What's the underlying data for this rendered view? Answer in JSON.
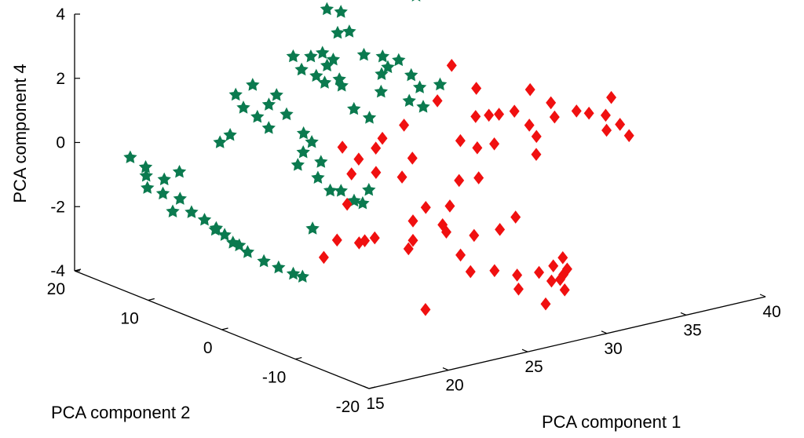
{
  "chart_data": {
    "type": "scatter",
    "projection": "3d",
    "grid": false,
    "colors": {
      "green": "#0b7a4f",
      "red": "#f01010"
    },
    "marker_shapes": {
      "green": "pentagram",
      "red": "diamond"
    },
    "axes": {
      "x": {
        "label": "PCA component 1",
        "lim": [
          15,
          40
        ],
        "ticks": [
          15,
          20,
          25,
          30,
          35,
          40
        ]
      },
      "y": {
        "label": "PCA component 2",
        "lim": [
          -20,
          20
        ],
        "ticks": [
          -20,
          -10,
          0,
          10,
          20
        ]
      },
      "z": {
        "label": "PCA component 4",
        "lim": [
          -4,
          4
        ],
        "ticks": [
          -4,
          -2,
          0,
          2,
          4
        ]
      }
    },
    "series": [
      {
        "color_key": "green",
        "points": [
          [
            15.6,
            11.4,
            -0.7
          ],
          [
            15.8,
            12.0,
            -0.4
          ],
          [
            16.3,
            10.8,
            -0.9
          ],
          [
            16.0,
            12.5,
            -0.2
          ],
          [
            16.8,
            11.7,
            -0.6
          ],
          [
            17.1,
            10.2,
            -1.1
          ],
          [
            16.5,
            9.9,
            -1.4
          ],
          [
            15.4,
            13.3,
            0.1
          ],
          [
            17.9,
            8.6,
            -1.7
          ],
          [
            17.5,
            9.5,
            -1.5
          ],
          [
            18.3,
            8.0,
            -2.0
          ],
          [
            19.0,
            7.1,
            -2.4
          ],
          [
            19.6,
            6.4,
            -2.7
          ],
          [
            20.3,
            5.7,
            -3.0
          ],
          [
            20.9,
            5.0,
            -3.2
          ],
          [
            21.5,
            4.3,
            -3.4
          ],
          [
            21.9,
            3.9,
            -3.5
          ],
          [
            18.8,
            7.8,
            -2.2
          ],
          [
            18.5,
            8.3,
            -2.0
          ],
          [
            19.3,
            6.9,
            -2.5
          ],
          [
            17.2,
            10.5,
            -0.3
          ],
          [
            19.2,
            9.3,
            0.5
          ],
          [
            19.7,
            9.0,
            0.7
          ],
          [
            22.3,
            3.4,
            -2.0
          ],
          [
            20.4,
            8.7,
            1.5
          ],
          [
            20.1,
            9.1,
            1.9
          ],
          [
            21.0,
            8.1,
            1.2
          ],
          [
            21.4,
            7.4,
            1.6
          ],
          [
            20.8,
            8.3,
            2.2
          ],
          [
            21.7,
            7.0,
            1.9
          ],
          [
            22.1,
            6.5,
            1.3
          ],
          [
            22.8,
            5.7,
            0.7
          ],
          [
            21.3,
            7.2,
            0.9
          ],
          [
            22.3,
            5.4,
            -0.2
          ],
          [
            23.1,
            4.4,
            -0.6
          ],
          [
            23.6,
            3.8,
            -1.0
          ],
          [
            23.2,
            4.2,
            -0.1
          ],
          [
            22.5,
            5.1,
            0.2
          ],
          [
            24.0,
            3.2,
            -1.0
          ],
          [
            22.9,
            4.8,
            0.5
          ],
          [
            24.5,
            2.5,
            -1.3
          ],
          [
            24.9,
            2.2,
            -1.4
          ],
          [
            25.2,
            2.0,
            -1.0
          ],
          [
            22.7,
            6.9,
            3.0
          ],
          [
            23.4,
            6.0,
            3.0
          ],
          [
            23.9,
            5.5,
            3.1
          ],
          [
            23.0,
            6.4,
            2.6
          ],
          [
            23.6,
            5.7,
            2.4
          ],
          [
            24.3,
            4.9,
            2.9
          ],
          [
            24.1,
            5.3,
            2.7
          ],
          [
            24.6,
            4.4,
            2.1
          ],
          [
            23.9,
            5.2,
            2.2
          ],
          [
            24.5,
            4.5,
            2.3
          ],
          [
            25.7,
            3.0,
            1.1
          ],
          [
            25.0,
            3.6,
            1.4
          ],
          [
            26.2,
            2.5,
            1.9
          ],
          [
            24.6,
            6.4,
            4.3
          ],
          [
            25.2,
            5.8,
            4.2
          ],
          [
            24.9,
            5.6,
            3.6
          ],
          [
            25.5,
            5.3,
            3.6
          ],
          [
            26.0,
            4.4,
            2.9
          ],
          [
            26.7,
            3.5,
            2.3
          ],
          [
            27.0,
            3.3,
            2.5
          ],
          [
            27.5,
            2.9,
            2.7
          ],
          [
            26.9,
            3.8,
            2.8
          ],
          [
            28.1,
            2.5,
            2.2
          ],
          [
            28.5,
            2.2,
            1.8
          ],
          [
            28.3,
            1.3,
            1.3
          ],
          [
            27.7,
            1.9,
            1.5
          ],
          [
            29.2,
            4.2,
            4.4
          ],
          [
            29.6,
            1.8,
            1.8
          ]
        ]
      },
      {
        "color_key": "red",
        "points": [
          [
            18.6,
            -6.1,
            -1.6
          ],
          [
            20.5,
            -6.8,
            -1.3
          ],
          [
            20.3,
            -8.0,
            -1.1
          ],
          [
            19.9,
            -5.1,
            -1.3
          ],
          [
            21.3,
            -7.2,
            -1.2
          ],
          [
            21.0,
            -4.1,
            -0.4
          ],
          [
            23.4,
            -0.5,
            0.4
          ],
          [
            23.3,
            1.5,
            0.6
          ],
          [
            24.5,
            -5.5,
            -1.8
          ],
          [
            24.5,
            -7.2,
            -3.8
          ],
          [
            23.8,
            -6.4,
            -1.9
          ],
          [
            24.2,
            2.2,
            -0.4
          ],
          [
            25.0,
            0.6,
            -0.3
          ],
          [
            25.5,
            1.7,
            0.3
          ],
          [
            25.9,
            -1.0,
            -0.4
          ],
          [
            26.6,
            -0.9,
            0.1
          ],
          [
            27.0,
            1.1,
            0.9
          ],
          [
            26.1,
            2.1,
            0.5
          ],
          [
            26.7,
            -2.5,
            -1.3
          ],
          [
            27.3,
            -4.0,
            -2.0
          ],
          [
            27.8,
            -3.4,
            -1.3
          ],
          [
            25.8,
            -2.7,
            -1.6
          ],
          [
            28.8,
            -2.5,
            -0.7
          ],
          [
            26.6,
            -5.0,
            -1.6
          ],
          [
            27.5,
            -5.5,
            -2.6
          ],
          [
            28.4,
            -5.4,
            -2.1
          ],
          [
            28.9,
            -7.1,
            -3.1
          ],
          [
            27.2,
            -7.5,
            -2.9
          ],
          [
            29.7,
            -6.1,
            -2.0
          ],
          [
            30.0,
            -7.8,
            -3.3
          ],
          [
            30.6,
            -6.3,
            -1.7
          ],
          [
            29.2,
            -4.3,
            -0.5
          ],
          [
            29.9,
            -2.6,
            0.2
          ],
          [
            29.3,
            -1.6,
            0.4
          ],
          [
            30.4,
            -1.3,
            1.0
          ],
          [
            31.0,
            -0.1,
            1.7
          ],
          [
            29.8,
            2.6,
            1.2
          ],
          [
            30.7,
            2.6,
            2.2
          ],
          [
            31.7,
            -0.3,
            0.8
          ],
          [
            31.3,
            -1.9,
            0.1
          ],
          [
            32.2,
            -0.6,
            0.8
          ],
          [
            32.8,
            -1.4,
            0.9
          ],
          [
            33.4,
            -3.1,
            0.2
          ],
          [
            33.2,
            -3.5,
            -0.3
          ],
          [
            33.6,
            -1.7,
            0.4
          ],
          [
            34.3,
            -0.3,
            1.3
          ],
          [
            35.1,
            -1.4,
            0.9
          ],
          [
            35.1,
            -1.9,
            0.5
          ],
          [
            36.9,
            -1.0,
            0.4
          ],
          [
            37.5,
            -1.4,
            0.3
          ],
          [
            38.6,
            -1.3,
            0.1
          ],
          [
            39.0,
            -1.2,
            0.6
          ],
          [
            38.9,
            -2.6,
            -0.1
          ],
          [
            38.1,
            -2.5,
            -0.2
          ],
          [
            39.1,
            -3.4,
            -0.4
          ],
          [
            29.3,
            -9.5,
            -3.5
          ],
          [
            30.5,
            -9.7,
            -3.1
          ],
          [
            31.4,
            -9.7,
            -3.0
          ],
          [
            31.9,
            -10.0,
            -3.3
          ],
          [
            30.5,
            -10.6,
            -4.0
          ],
          [
            31.7,
            -10.6,
            -3.7
          ],
          [
            31.6,
            -10.2,
            -3.4
          ],
          [
            31.1,
            -10.1,
            -3.4
          ],
          [
            32.6,
            -8.4,
            -3.0
          ],
          [
            32.6,
            -9.0,
            -3.3
          ]
        ]
      }
    ]
  }
}
